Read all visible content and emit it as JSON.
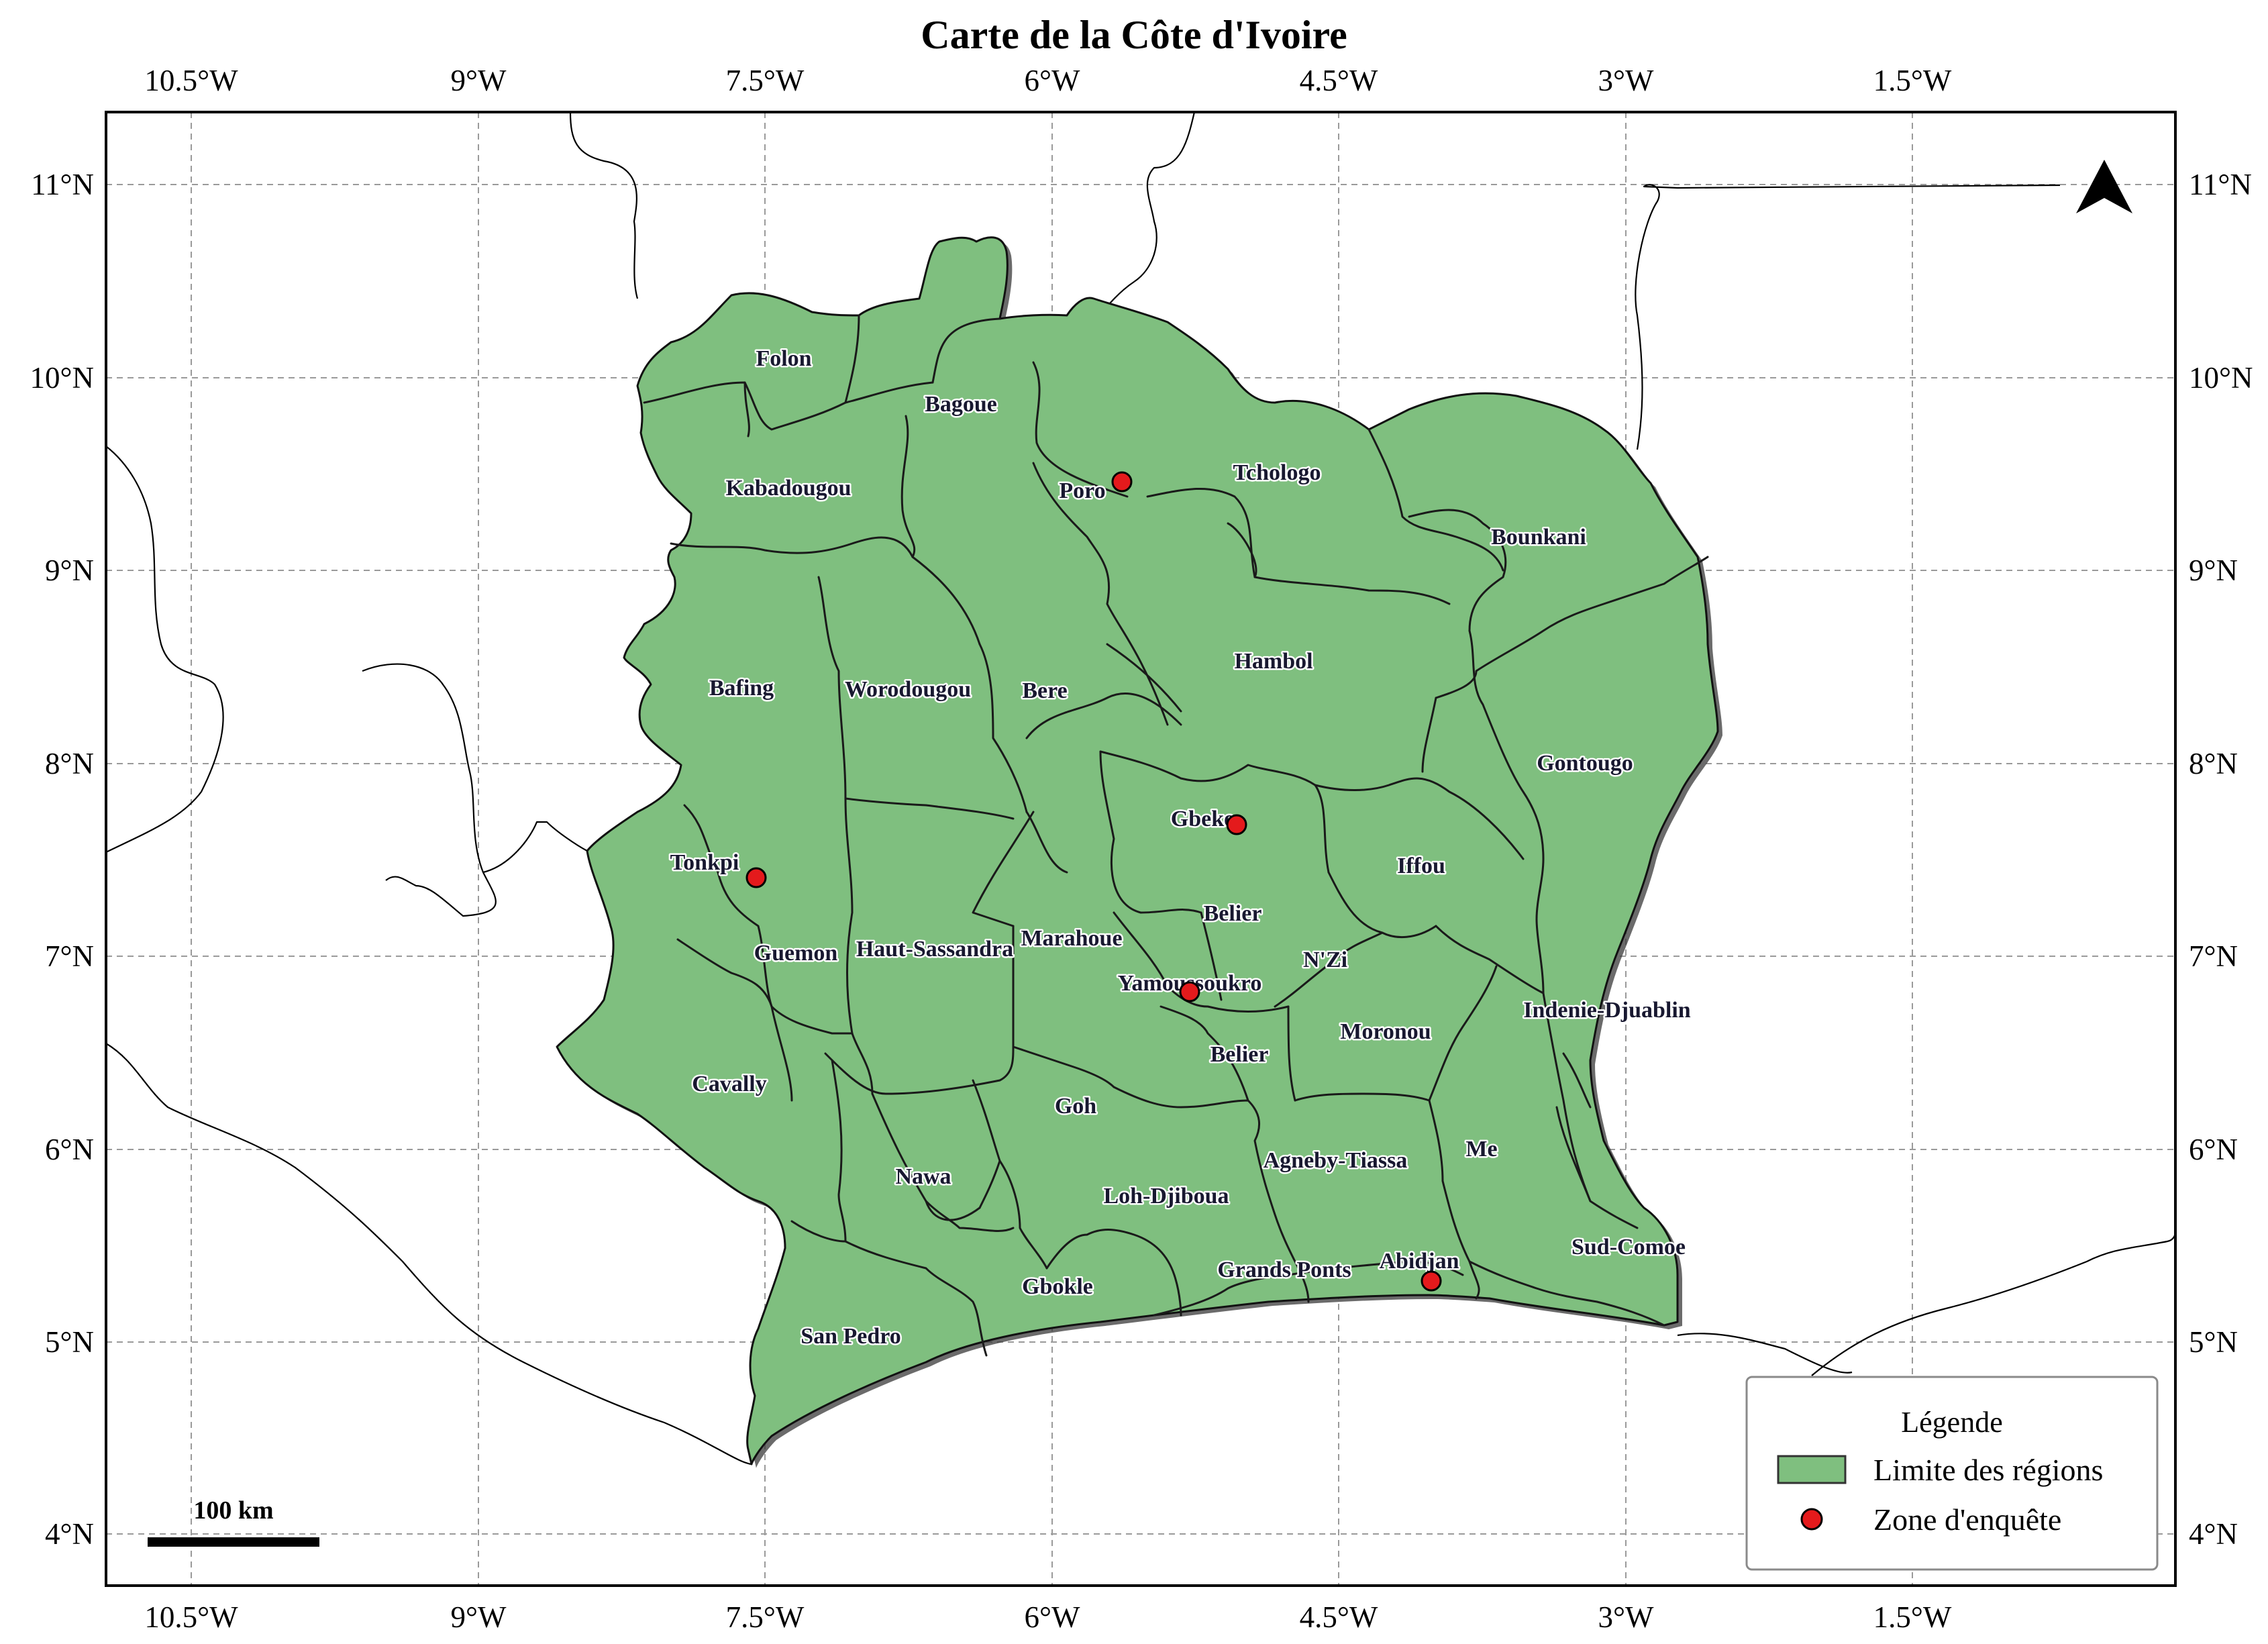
{
  "map": {
    "title": "Carte de la Côte d'Ivoire",
    "lon_ticks": [
      "10.5°W",
      "9°W",
      "7.5°W",
      "6°W",
      "4.5°W",
      "3°W",
      "1.5°W"
    ],
    "lat_ticks": [
      "11°N",
      "10°N",
      "9°N",
      "8°N",
      "7°N",
      "6°N",
      "5°N",
      "4°N"
    ],
    "north_arrow": "north-arrow-icon",
    "colors": {
      "regions_fill": "#7fbf7f",
      "survey_point": "#e41a1c"
    }
  },
  "regions": [
    "Folon",
    "Bagoue",
    "Kabadougou",
    "Poro",
    "Tchologo",
    "Bounkani",
    "Bafing",
    "Worodougou",
    "Bere",
    "Hambol",
    "Gontougo",
    "Gbeke",
    "Tonkpi",
    "Iffou",
    "Belier",
    "Haut-Sassandra",
    "Marahoue",
    "Guemon",
    "N'Zi",
    "Yamoussoukro",
    "Indenie-Djuablin",
    "Belier",
    "Moronou",
    "Cavally",
    "Goh",
    "Me",
    "Agneby-Tiassa",
    "Nawa",
    "Loh-Djiboua",
    "Sud-Comoe",
    "Abidjan",
    "Grands Ponts",
    "Gbokle",
    "San Pedro"
  ],
  "survey_zones": [
    "Poro",
    "Gbeke",
    "Tonkpi",
    "Yamoussoukro",
    "Abidjan"
  ],
  "legend": {
    "title": "Légende",
    "items": [
      "Limite des régions",
      "Zone d'enquête"
    ]
  },
  "scale_bar": {
    "label": "100 km"
  }
}
